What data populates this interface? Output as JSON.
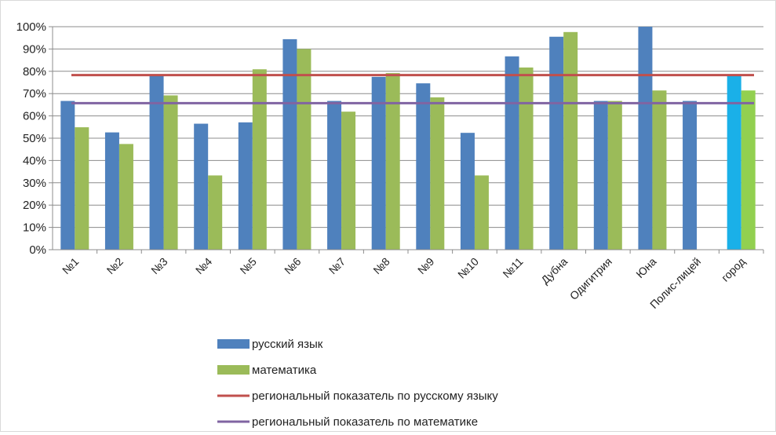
{
  "chart_data": {
    "type": "bar",
    "categories": [
      "№1",
      "№2",
      "№3",
      "№4",
      "№5",
      "№6",
      "№7",
      "№8",
      "№9",
      "№10",
      "№11",
      "Дубна",
      "Одигитрия",
      "Юна",
      "Полис-лицей",
      "город"
    ],
    "y_ticks": [
      "0%",
      "10%",
      "20%",
      "30%",
      "40%",
      "50%",
      "60%",
      "70%",
      "80%",
      "90%",
      "100%"
    ],
    "ylim": [
      0,
      100
    ],
    "series": [
      {
        "name": "русский язык",
        "color": "#4f81bd",
        "values": [
          66.7,
          52.6,
          78.3,
          56.5,
          57.1,
          94.4,
          66.7,
          77.5,
          74.6,
          52.4,
          86.7,
          95.5,
          66.7,
          100,
          66.7,
          78.0
        ],
        "highlight": {
          "15": "#1ab0e8"
        }
      },
      {
        "name": "математика",
        "color": "#9bbb59",
        "values": [
          54.9,
          47.4,
          69.2,
          33.3,
          80.9,
          90.0,
          61.9,
          79.2,
          68.3,
          33.3,
          81.7,
          97.6,
          66.7,
          71.4,
          null,
          71.4
        ],
        "highlight": {
          "15": "#92d050"
        }
      }
    ],
    "reference_lines": [
      {
        "name": "региональный показатель по русскому языку",
        "value": 78.3,
        "color": "#c0504d"
      },
      {
        "name": "региональный показатель по математике",
        "value": 65.7,
        "color": "#8064a2"
      }
    ],
    "grid": true,
    "legend_position": "bottom"
  }
}
